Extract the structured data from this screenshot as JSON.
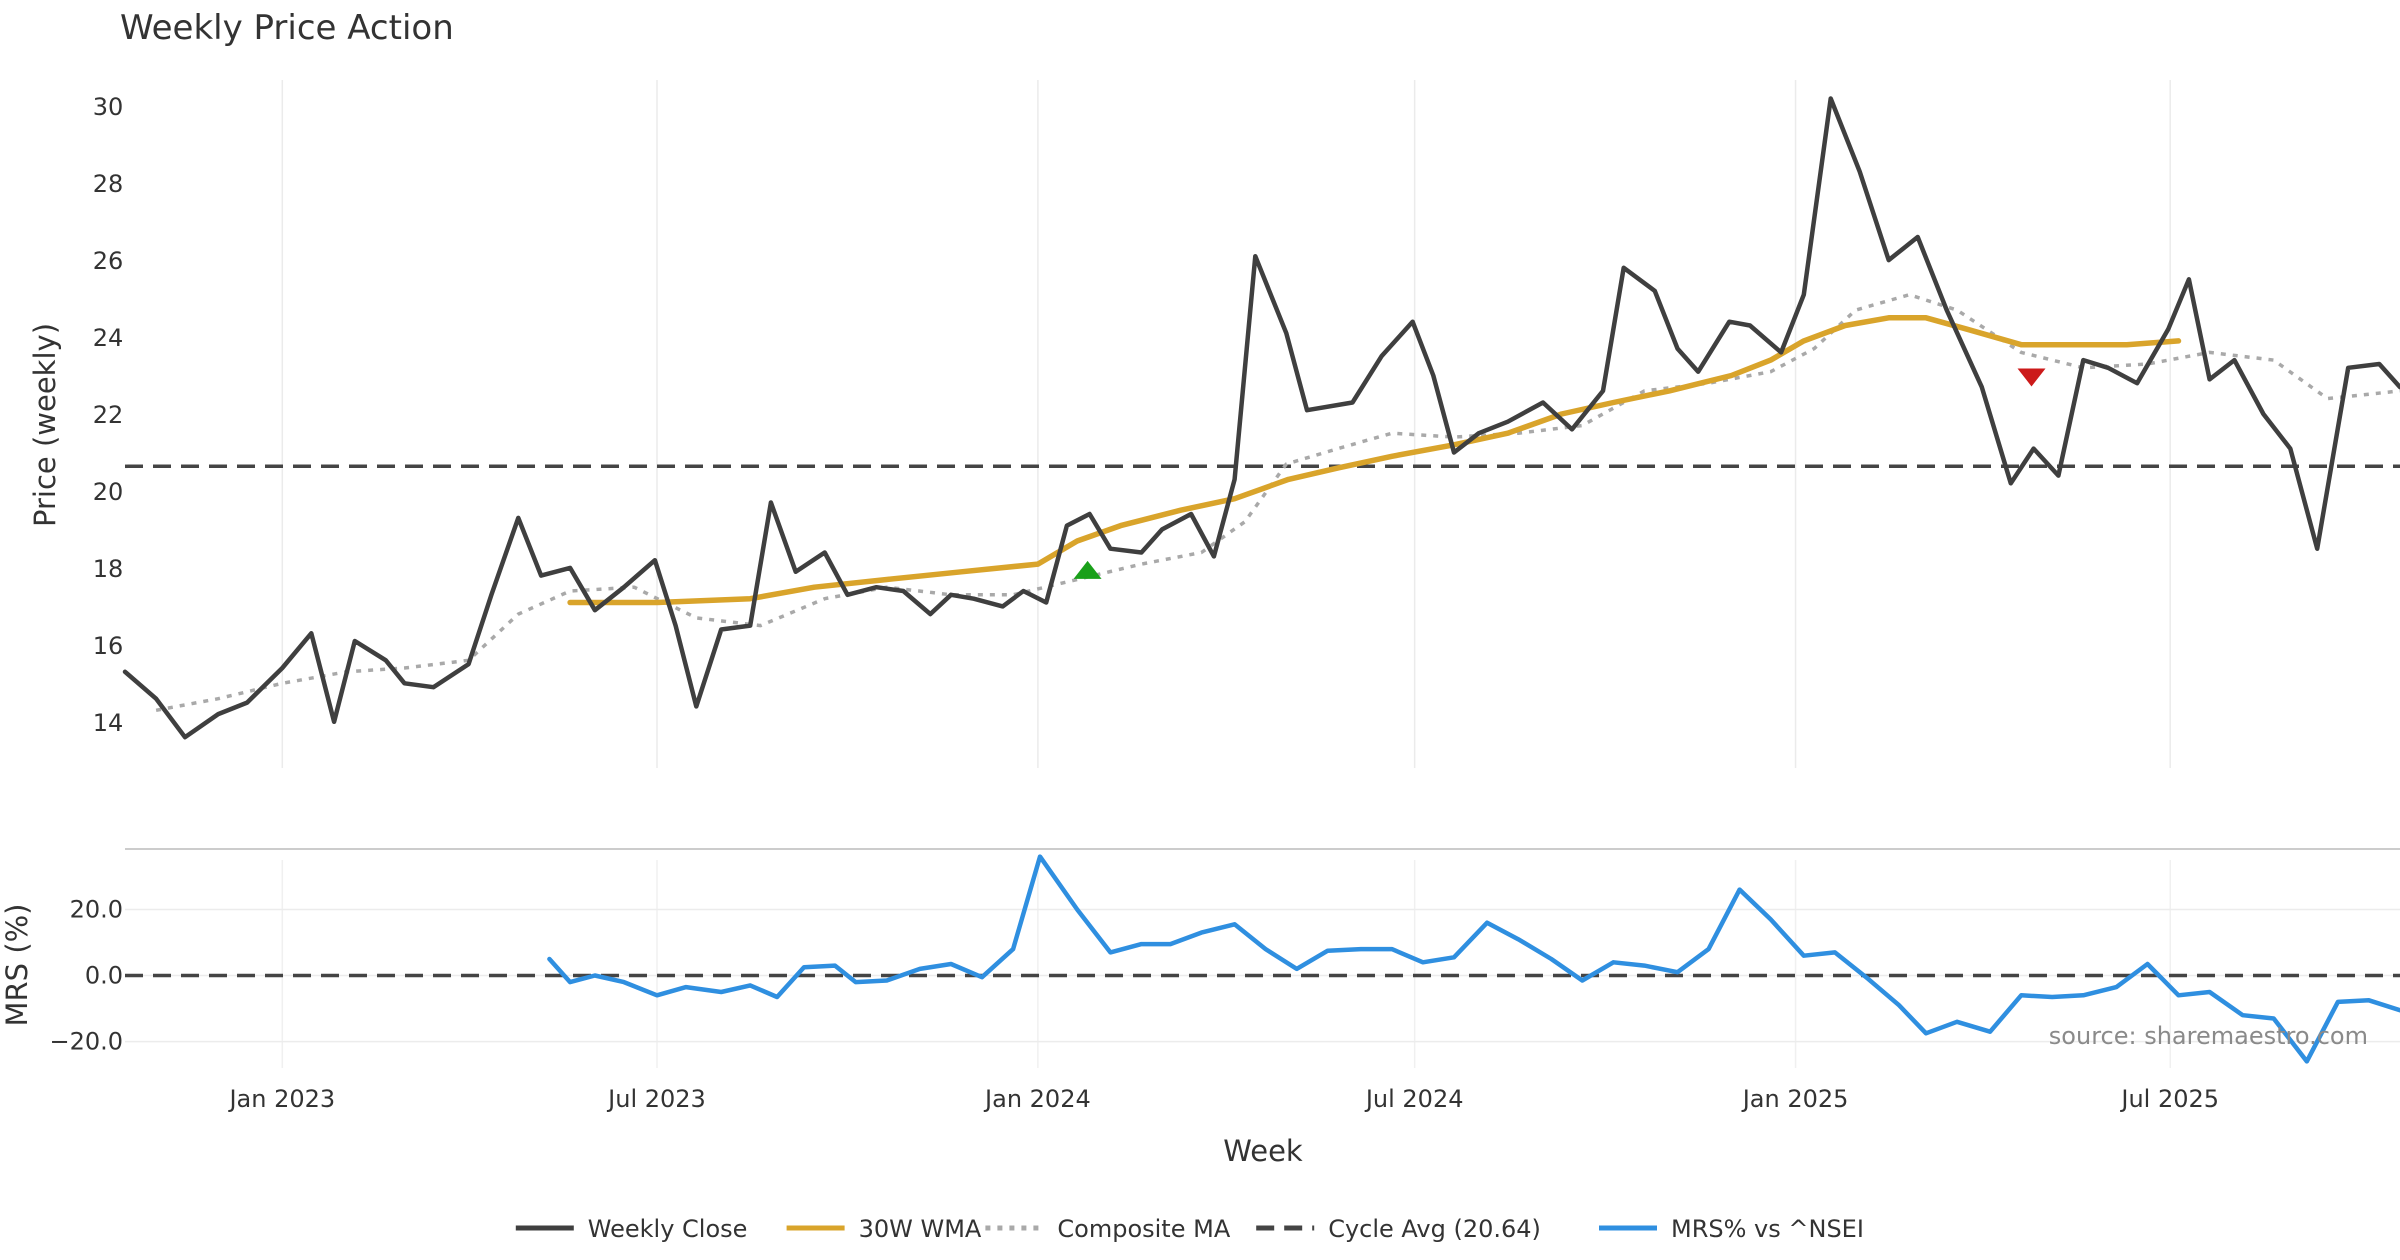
{
  "chart_data": [
    {
      "type": "line",
      "panel": "price",
      "title": "Weekly Price Action",
      "ylabel": "Price (weekly)",
      "xlabel": "Week",
      "ylim": [
        12.8,
        31.2
      ],
      "yticks": [
        14,
        16,
        18,
        20,
        22,
        24,
        26,
        28,
        30
      ],
      "ytick_labels": [
        "14",
        "16",
        "18",
        "20",
        "22",
        "24",
        "26",
        "28",
        "30"
      ],
      "x_range": [
        "2022-10-17",
        "2025-10-20"
      ],
      "grid": true,
      "series": [
        {
          "name": "Weekly Close",
          "color": "#3f3f3f",
          "style": "solid",
          "points": [
            [
              "2022-10-17",
              15.3
            ],
            [
              "2022-11-01",
              14.6
            ],
            [
              "2022-11-15",
              13.6
            ],
            [
              "2022-12-01",
              14.2
            ],
            [
              "2022-12-15",
              14.5
            ],
            [
              "2023-01-01",
              15.4
            ],
            [
              "2023-01-15",
              16.3
            ],
            [
              "2023-01-26",
              14.0
            ],
            [
              "2023-02-05",
              16.1
            ],
            [
              "2023-02-20",
              15.6
            ],
            [
              "2023-03-01",
              15.0
            ],
            [
              "2023-03-15",
              14.9
            ],
            [
              "2023-04-01",
              15.5
            ],
            [
              "2023-04-12",
              17.3
            ],
            [
              "2023-04-25",
              19.3
            ],
            [
              "2023-05-06",
              17.8
            ],
            [
              "2023-05-20",
              18.0
            ],
            [
              "2023-06-01",
              16.9
            ],
            [
              "2023-06-15",
              17.5
            ],
            [
              "2023-06-30",
              18.2
            ],
            [
              "2023-07-10",
              16.5
            ],
            [
              "2023-07-20",
              14.4
            ],
            [
              "2023-08-01",
              16.4
            ],
            [
              "2023-08-15",
              16.5
            ],
            [
              "2023-08-25",
              19.7
            ],
            [
              "2023-09-06",
              17.9
            ],
            [
              "2023-09-20",
              18.4
            ],
            [
              "2023-10-01",
              17.3
            ],
            [
              "2023-10-15",
              17.5
            ],
            [
              "2023-10-28",
              17.4
            ],
            [
              "2023-11-10",
              16.8
            ],
            [
              "2023-11-20",
              17.3
            ],
            [
              "2023-12-01",
              17.2
            ],
            [
              "2023-12-15",
              17.0
            ],
            [
              "2023-12-25",
              17.4
            ],
            [
              "2024-01-05",
              17.1
            ],
            [
              "2024-01-15",
              19.1
            ],
            [
              "2024-01-26",
              19.4
            ],
            [
              "2024-02-05",
              18.5
            ],
            [
              "2024-02-20",
              18.4
            ],
            [
              "2024-03-01",
              19.0
            ],
            [
              "2024-03-15",
              19.4
            ],
            [
              "2024-03-26",
              18.3
            ],
            [
              "2024-04-05",
              20.3
            ],
            [
              "2024-04-15",
              26.1
            ],
            [
              "2024-04-30",
              24.1
            ],
            [
              "2024-05-10",
              22.1
            ],
            [
              "2024-06-01",
              22.3
            ],
            [
              "2024-06-15",
              23.5
            ],
            [
              "2024-06-30",
              24.4
            ],
            [
              "2024-07-10",
              23.0
            ],
            [
              "2024-07-20",
              21.0
            ],
            [
              "2024-08-01",
              21.5
            ],
            [
              "2024-08-15",
              21.8
            ],
            [
              "2024-09-01",
              22.3
            ],
            [
              "2024-09-15",
              21.6
            ],
            [
              "2024-09-30",
              22.6
            ],
            [
              "2024-10-10",
              25.8
            ],
            [
              "2024-10-25",
              25.2
            ],
            [
              "2024-11-05",
              23.7
            ],
            [
              "2024-11-15",
              23.1
            ],
            [
              "2024-11-30",
              24.4
            ],
            [
              "2024-12-10",
              24.3
            ],
            [
              "2024-12-25",
              23.6
            ],
            [
              "2025-01-05",
              25.1
            ],
            [
              "2025-01-18",
              30.2
            ],
            [
              "2025-02-01",
              28.3
            ],
            [
              "2025-02-15",
              26.0
            ],
            [
              "2025-03-01",
              26.6
            ],
            [
              "2025-03-15",
              24.7
            ],
            [
              "2025-04-01",
              22.7
            ],
            [
              "2025-04-15",
              20.2
            ],
            [
              "2025-04-26",
              21.1
            ],
            [
              "2025-05-08",
              20.4
            ],
            [
              "2025-05-20",
              23.4
            ],
            [
              "2025-06-01",
              23.2
            ],
            [
              "2025-06-15",
              22.8
            ],
            [
              "2025-06-30",
              24.2
            ],
            [
              "2025-07-10",
              25.5
            ],
            [
              "2025-07-20",
              22.9
            ],
            [
              "2025-08-01",
              23.4
            ],
            [
              "2025-08-15",
              22.0
            ],
            [
              "2025-08-28",
              21.1
            ],
            [
              "2025-09-10",
              18.5
            ],
            [
              "2025-09-25",
              23.2
            ],
            [
              "2025-10-10",
              23.3
            ],
            [
              "2025-10-20",
              22.7
            ]
          ]
        },
        {
          "name": "30W WMA",
          "color": "#d9a42b",
          "style": "solid",
          "points": [
            [
              "2023-05-20",
              17.1
            ],
            [
              "2023-07-01",
              17.1
            ],
            [
              "2023-08-15",
              17.2
            ],
            [
              "2023-09-15",
              17.5
            ],
            [
              "2023-10-20",
              17.7
            ],
            [
              "2023-11-25",
              17.9
            ],
            [
              "2024-01-01",
              18.1
            ],
            [
              "2024-01-20",
              18.7
            ],
            [
              "2024-02-10",
              19.1
            ],
            [
              "2024-03-10",
              19.5
            ],
            [
              "2024-04-05",
              19.8
            ],
            [
              "2024-05-01",
              20.3
            ],
            [
              "2024-05-25",
              20.6
            ],
            [
              "2024-06-20",
              20.9
            ],
            [
              "2024-07-20",
              21.2
            ],
            [
              "2024-08-15",
              21.5
            ],
            [
              "2024-09-10",
              22.0
            ],
            [
              "2024-10-05",
              22.3
            ],
            [
              "2024-11-01",
              22.6
            ],
            [
              "2024-12-01",
              23.0
            ],
            [
              "2024-12-20",
              23.4
            ],
            [
              "2025-01-05",
              23.9
            ],
            [
              "2025-01-25",
              24.3
            ],
            [
              "2025-02-15",
              24.5
            ],
            [
              "2025-03-05",
              24.5
            ],
            [
              "2025-03-25",
              24.2
            ],
            [
              "2025-04-20",
              23.8
            ],
            [
              "2025-05-15",
              23.8
            ],
            [
              "2025-06-10",
              23.8
            ],
            [
              "2025-07-05",
              23.9
            ]
          ]
        },
        {
          "name": "Composite MA",
          "color": "#a9a9a9",
          "style": "dotted",
          "points": [
            [
              "2022-11-01",
              14.3
            ],
            [
              "2022-12-01",
              14.6
            ],
            [
              "2023-01-01",
              15.0
            ],
            [
              "2023-02-01",
              15.3
            ],
            [
              "2023-03-01",
              15.4
            ],
            [
              "2023-04-01",
              15.6
            ],
            [
              "2023-04-25",
              16.8
            ],
            [
              "2023-05-20",
              17.4
            ],
            [
              "2023-06-20",
              17.5
            ],
            [
              "2023-07-20",
              16.7
            ],
            [
              "2023-08-20",
              16.5
            ],
            [
              "2023-09-20",
              17.2
            ],
            [
              "2023-10-20",
              17.5
            ],
            [
              "2023-11-20",
              17.3
            ],
            [
              "2023-12-20",
              17.3
            ],
            [
              "2024-01-20",
              17.7
            ],
            [
              "2024-02-20",
              18.1
            ],
            [
              "2024-03-20",
              18.4
            ],
            [
              "2024-04-10",
              19.2
            ],
            [
              "2024-04-30",
              20.7
            ],
            [
              "2024-05-25",
              21.1
            ],
            [
              "2024-06-20",
              21.5
            ],
            [
              "2024-07-20",
              21.4
            ],
            [
              "2024-08-20",
              21.5
            ],
            [
              "2024-09-20",
              21.7
            ],
            [
              "2024-10-20",
              22.6
            ],
            [
              "2024-11-20",
              22.8
            ],
            [
              "2024-12-20",
              23.1
            ],
            [
              "2025-01-10",
              23.7
            ],
            [
              "2025-01-30",
              24.7
            ],
            [
              "2025-02-25",
              25.1
            ],
            [
              "2025-03-20",
              24.7
            ],
            [
              "2025-04-20",
              23.6
            ],
            [
              "2025-05-20",
              23.2
            ],
            [
              "2025-06-20",
              23.3
            ],
            [
              "2025-07-20",
              23.6
            ],
            [
              "2025-08-20",
              23.4
            ],
            [
              "2025-09-15",
              22.4
            ],
            [
              "2025-10-20",
              22.6
            ]
          ]
        },
        {
          "name": "Cycle Avg (20.64)",
          "color": "#444444",
          "style": "dashed",
          "points": [
            [
              "2022-10-17",
              20.64
            ],
            [
              "2025-10-20",
              20.64
            ]
          ]
        }
      ],
      "signals": [
        {
          "type": "buy",
          "x": "2024-01-25",
          "y": 17.95,
          "color": "#1aa01a"
        },
        {
          "type": "sell",
          "x": "2025-04-25",
          "y": 22.95,
          "color": "#cc1a1a"
        }
      ]
    },
    {
      "type": "line",
      "panel": "mrs",
      "ylabel": "MRS (%)",
      "ylim": [
        -28,
        38
      ],
      "yticks": [
        -20,
        0,
        20
      ],
      "ytick_labels": [
        "−20.0",
        "0.0",
        "20.0"
      ],
      "baseline": 0,
      "series": [
        {
          "name": "MRS% vs ^NSEI",
          "color": "#2f8fe0",
          "style": "solid",
          "points": [
            [
              "2023-05-10",
              5.0
            ],
            [
              "2023-05-20",
              -2.0
            ],
            [
              "2023-06-01",
              0.0
            ],
            [
              "2023-06-15",
              -2.0
            ],
            [
              "2023-07-01",
              -6.0
            ],
            [
              "2023-07-15",
              -3.5
            ],
            [
              "2023-08-01",
              -5.0
            ],
            [
              "2023-08-15",
              -3.0
            ],
            [
              "2023-08-28",
              -6.5
            ],
            [
              "2023-09-10",
              2.5
            ],
            [
              "2023-09-25",
              3.0
            ],
            [
              "2023-10-05",
              -2.0
            ],
            [
              "2023-10-20",
              -1.5
            ],
            [
              "2023-11-05",
              2.0
            ],
            [
              "2023-11-20",
              3.5
            ],
            [
              "2023-12-05",
              -0.5
            ],
            [
              "2023-12-20",
              8.0
            ],
            [
              "2024-01-02",
              36.0
            ],
            [
              "2024-01-20",
              20.0
            ],
            [
              "2024-02-05",
              7.0
            ],
            [
              "2024-02-20",
              9.5
            ],
            [
              "2024-03-05",
              9.5
            ],
            [
              "2024-03-20",
              13.0
            ],
            [
              "2024-04-05",
              15.5
            ],
            [
              "2024-04-20",
              8.0
            ],
            [
              "2024-05-05",
              2.0
            ],
            [
              "2024-05-20",
              7.5
            ],
            [
              "2024-06-05",
              8.0
            ],
            [
              "2024-06-20",
              8.0
            ],
            [
              "2024-07-05",
              4.0
            ],
            [
              "2024-07-20",
              5.5
            ],
            [
              "2024-08-05",
              16.0
            ],
            [
              "2024-08-20",
              11.0
            ],
            [
              "2024-09-05",
              5.0
            ],
            [
              "2024-09-20",
              -1.5
            ],
            [
              "2024-10-05",
              4.0
            ],
            [
              "2024-10-20",
              3.0
            ],
            [
              "2024-11-05",
              1.0
            ],
            [
              "2024-11-20",
              8.0
            ],
            [
              "2024-12-05",
              26.0
            ],
            [
              "2024-12-20",
              17.0
            ],
            [
              "2025-01-05",
              6.0
            ],
            [
              "2025-01-20",
              7.0
            ],
            [
              "2025-02-05",
              -1.0
            ],
            [
              "2025-02-20",
              -9.0
            ],
            [
              "2025-03-05",
              -17.5
            ],
            [
              "2025-03-20",
              -14.0
            ],
            [
              "2025-04-05",
              -17.0
            ],
            [
              "2025-04-20",
              -6.0
            ],
            [
              "2025-05-05",
              -6.5
            ],
            [
              "2025-05-20",
              -6.0
            ],
            [
              "2025-06-05",
              -3.5
            ],
            [
              "2025-06-20",
              3.5
            ],
            [
              "2025-07-05",
              -6.0
            ],
            [
              "2025-07-20",
              -5.0
            ],
            [
              "2025-08-05",
              -12.0
            ],
            [
              "2025-08-20",
              -13.0
            ],
            [
              "2025-09-05",
              -26.0
            ],
            [
              "2025-09-20",
              -8.0
            ],
            [
              "2025-10-05",
              -7.5
            ],
            [
              "2025-10-20",
              -10.5
            ]
          ]
        },
        {
          "name": "",
          "color": "#444444",
          "style": "dashed",
          "points": [
            [
              "2022-10-17",
              0
            ],
            [
              "2025-10-20",
              0
            ]
          ]
        }
      ],
      "x_ticks": [
        "2023-01-01",
        "2023-07-01",
        "2024-01-01",
        "2024-07-01",
        "2025-01-01",
        "2025-07-01"
      ],
      "x_tick_labels": [
        "Jan 2023",
        "Jul 2023",
        "Jan 2024",
        "Jul 2024",
        "Jan 2025",
        "Jul 2025"
      ],
      "xlabel": "Week",
      "annotation": "source: sharemaestro.com"
    }
  ],
  "legend": {
    "position": "bottom-center",
    "items": [
      {
        "label": "Weekly Close",
        "color": "#3f3f3f",
        "style": "solid"
      },
      {
        "label": "30W WMA",
        "color": "#d9a42b",
        "style": "solid"
      },
      {
        "label": "Composite MA",
        "color": "#a9a9a9",
        "style": "dotted"
      },
      {
        "label": "Cycle Avg (20.64)",
        "color": "#444444",
        "style": "dashed"
      },
      {
        "label": "MRS% vs ^NSEI",
        "color": "#2f8fe0",
        "style": "solid"
      }
    ]
  }
}
